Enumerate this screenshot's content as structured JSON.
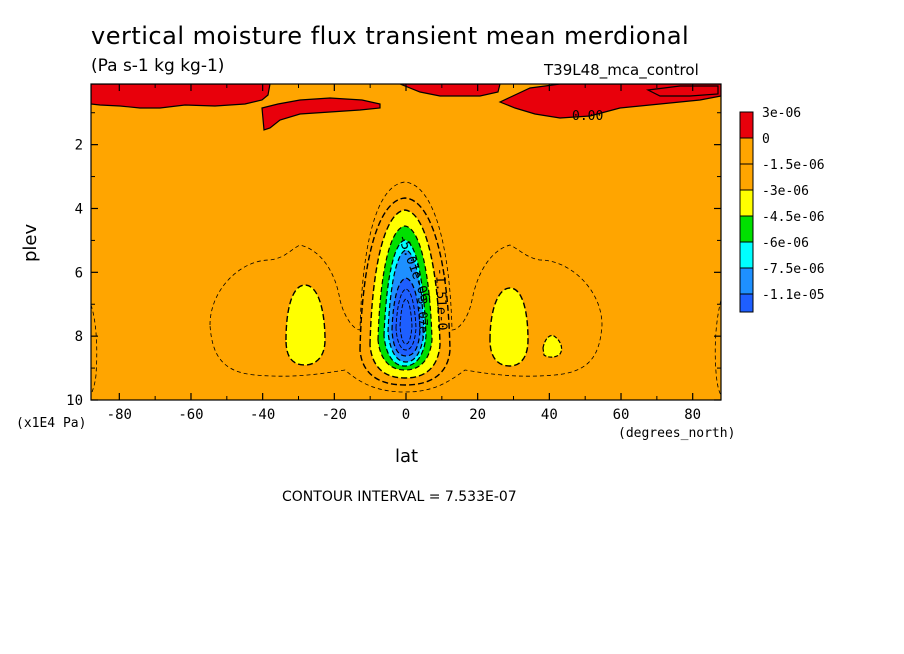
{
  "chart_data": {
    "type": "contour",
    "title": "vertical moisture flux transient mean merdional",
    "subtitle": "(Pa s-1 kg kg-1)",
    "run_label": "T39L48_mca_control",
    "xlabel": "lat",
    "xunit": "(degrees_north)",
    "ylabel": "plev",
    "yunit": "(x1E4 Pa)",
    "xlim": [
      -87.9,
      87.9
    ],
    "ylim": [
      10,
      0.1
    ],
    "x_ticks": [
      -80,
      -60,
      -40,
      -20,
      0,
      20,
      40,
      60,
      80
    ],
    "y_ticks": [
      2,
      4,
      6,
      8,
      10
    ],
    "contour_interval_text": "CONTOUR INTERVAL = 7.533E-07",
    "contour_labels": [
      "0.00",
      "-5.01e-06",
      "-1.51e-0",
      "-3.07e-"
    ],
    "legend": [
      {
        "label": "3e-06",
        "color": "#e8000b"
      },
      {
        "label": "0",
        "color": "#ffa500"
      },
      {
        "label": "-1.5e-06",
        "color": "#ffa500"
      },
      {
        "label": "-3e-06",
        "color": "#ffff00"
      },
      {
        "label": "-4.5e-06",
        "color": "#00e000"
      },
      {
        "label": "-6e-06",
        "color": "#00ffff"
      },
      {
        "label": "-7.5e-06",
        "color": "#1e90ff"
      },
      {
        "label": "-1.1e-05",
        "color": "#1e5fff"
      }
    ],
    "legend_position": "right"
  }
}
